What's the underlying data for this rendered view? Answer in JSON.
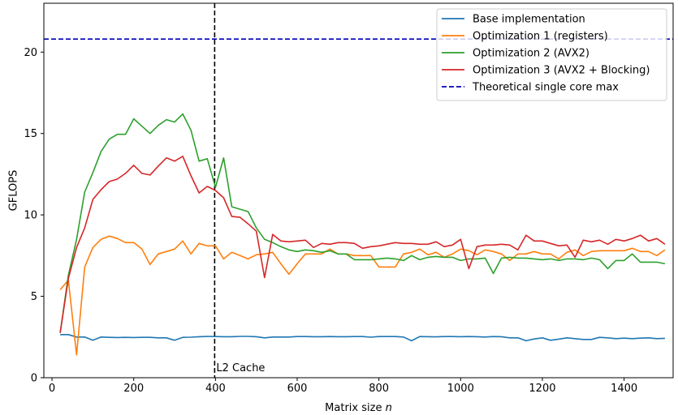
{
  "chart_data": {
    "type": "line",
    "xlabel": "Matrix size",
    "xlabel_var": "n",
    "ylabel": "GFLOPS",
    "xlim": [
      -20,
      1520
    ],
    "ylim": [
      0,
      23
    ],
    "xticks": [
      0,
      200,
      400,
      600,
      800,
      1000,
      1200,
      1400
    ],
    "yticks": [
      0,
      5,
      10,
      15,
      20
    ],
    "grid": false,
    "legend_position": "top-right",
    "annotations": [
      {
        "text": "L2 Cache",
        "x": 400,
        "y": 0.6
      }
    ],
    "reference_lines": [
      {
        "kind": "vertical",
        "x": 398,
        "color": "#000000",
        "style": "dashed"
      },
      {
        "kind": "horizontal",
        "y": 20.8,
        "name": "Theoretical single core max",
        "color": "#0000bb",
        "style": "dashed"
      }
    ],
    "x": [
      20,
      40,
      60,
      80,
      100,
      120,
      140,
      160,
      180,
      200,
      220,
      240,
      260,
      280,
      300,
      320,
      340,
      360,
      380,
      400,
      420,
      440,
      460,
      480,
      500,
      520,
      540,
      560,
      580,
      600,
      620,
      640,
      660,
      680,
      700,
      720,
      740,
      760,
      780,
      800,
      820,
      840,
      860,
      880,
      900,
      920,
      940,
      960,
      980,
      1000,
      1020,
      1040,
      1060,
      1080,
      1100,
      1120,
      1140,
      1160,
      1180,
      1200,
      1220,
      1240,
      1260,
      1280,
      1300,
      1320,
      1340,
      1360,
      1380,
      1400,
      1420,
      1440,
      1460,
      1480,
      1500
    ],
    "series": [
      {
        "name": "Base implementation",
        "color": "#1f77b4",
        "values": [
          2.65,
          2.65,
          2.5,
          2.5,
          2.3,
          2.5,
          2.48,
          2.47,
          2.48,
          2.47,
          2.48,
          2.48,
          2.45,
          2.45,
          2.3,
          2.48,
          2.49,
          2.52,
          2.54,
          2.53,
          2.52,
          2.52,
          2.54,
          2.54,
          2.52,
          2.45,
          2.5,
          2.5,
          2.5,
          2.53,
          2.53,
          2.52,
          2.52,
          2.53,
          2.52,
          2.52,
          2.53,
          2.53,
          2.49,
          2.53,
          2.53,
          2.53,
          2.5,
          2.27,
          2.53,
          2.52,
          2.51,
          2.53,
          2.53,
          2.52,
          2.53,
          2.52,
          2.5,
          2.53,
          2.52,
          2.45,
          2.45,
          2.27,
          2.38,
          2.45,
          2.3,
          2.37,
          2.45,
          2.4,
          2.35,
          2.35,
          2.48,
          2.45,
          2.4,
          2.43,
          2.4,
          2.43,
          2.45,
          2.4,
          2.42
        ]
      },
      {
        "name": "Optimization 1 (registers)",
        "color": "#ff7f0e",
        "values": [
          5.4,
          6.0,
          1.4,
          6.8,
          8.0,
          8.5,
          8.7,
          8.55,
          8.3,
          8.3,
          7.9,
          6.95,
          7.6,
          7.75,
          7.9,
          8.4,
          7.6,
          8.25,
          8.1,
          8.1,
          7.3,
          7.7,
          7.5,
          7.3,
          7.55,
          7.6,
          7.7,
          7.0,
          6.35,
          7.0,
          7.6,
          7.6,
          7.6,
          7.9,
          7.6,
          7.6,
          7.5,
          7.5,
          7.5,
          6.8,
          6.8,
          6.8,
          7.6,
          7.7,
          7.9,
          7.55,
          7.7,
          7.4,
          7.6,
          7.9,
          7.8,
          7.55,
          7.85,
          7.75,
          7.6,
          7.2,
          7.6,
          7.6,
          7.75,
          7.6,
          7.6,
          7.3,
          7.7,
          7.85,
          7.5,
          7.75,
          7.8,
          7.8,
          7.8,
          7.8,
          7.95,
          7.75,
          7.75,
          7.5,
          7.85
        ]
      },
      {
        "name": "Optimization 2 (AVX2)",
        "color": "#2ca02c",
        "values": [
          2.75,
          6.3,
          8.5,
          11.4,
          12.6,
          13.9,
          14.65,
          14.95,
          14.95,
          15.9,
          15.45,
          15.0,
          15.5,
          15.85,
          15.7,
          16.2,
          15.2,
          13.3,
          13.45,
          11.7,
          13.5,
          10.5,
          10.35,
          10.2,
          9.2,
          8.5,
          8.3,
          8.05,
          7.85,
          7.75,
          7.85,
          7.8,
          7.7,
          7.8,
          7.6,
          7.6,
          7.25,
          7.25,
          7.25,
          7.3,
          7.35,
          7.3,
          7.2,
          7.5,
          7.25,
          7.4,
          7.45,
          7.4,
          7.4,
          7.2,
          7.3,
          7.3,
          7.35,
          6.4,
          7.35,
          7.4,
          7.35,
          7.35,
          7.3,
          7.25,
          7.3,
          7.2,
          7.3,
          7.3,
          7.25,
          7.35,
          7.25,
          6.7,
          7.2,
          7.2,
          7.6,
          7.1,
          7.1,
          7.1,
          7.0
        ]
      },
      {
        "name": "Optimization 3 (AVX2 + Blocking)",
        "color": "#d62728",
        "values": [
          2.75,
          6.1,
          8.0,
          9.2,
          10.95,
          11.55,
          12.05,
          12.2,
          12.55,
          13.05,
          12.55,
          12.45,
          13.0,
          13.5,
          13.3,
          13.6,
          12.4,
          11.35,
          11.75,
          11.5,
          11.05,
          9.9,
          9.85,
          9.45,
          9.0,
          6.15,
          8.8,
          8.4,
          8.35,
          8.4,
          8.45,
          8.0,
          8.25,
          8.2,
          8.3,
          8.3,
          8.25,
          7.95,
          8.05,
          8.1,
          8.2,
          8.3,
          8.25,
          8.25,
          8.2,
          8.2,
          8.35,
          8.05,
          8.15,
          8.5,
          6.7,
          8.05,
          8.15,
          8.15,
          8.2,
          8.15,
          7.85,
          8.75,
          8.4,
          8.4,
          8.25,
          8.1,
          8.15,
          7.4,
          8.45,
          8.35,
          8.45,
          8.2,
          8.5,
          8.4,
          8.55,
          8.75,
          8.4,
          8.55,
          8.2
        ]
      }
    ]
  }
}
